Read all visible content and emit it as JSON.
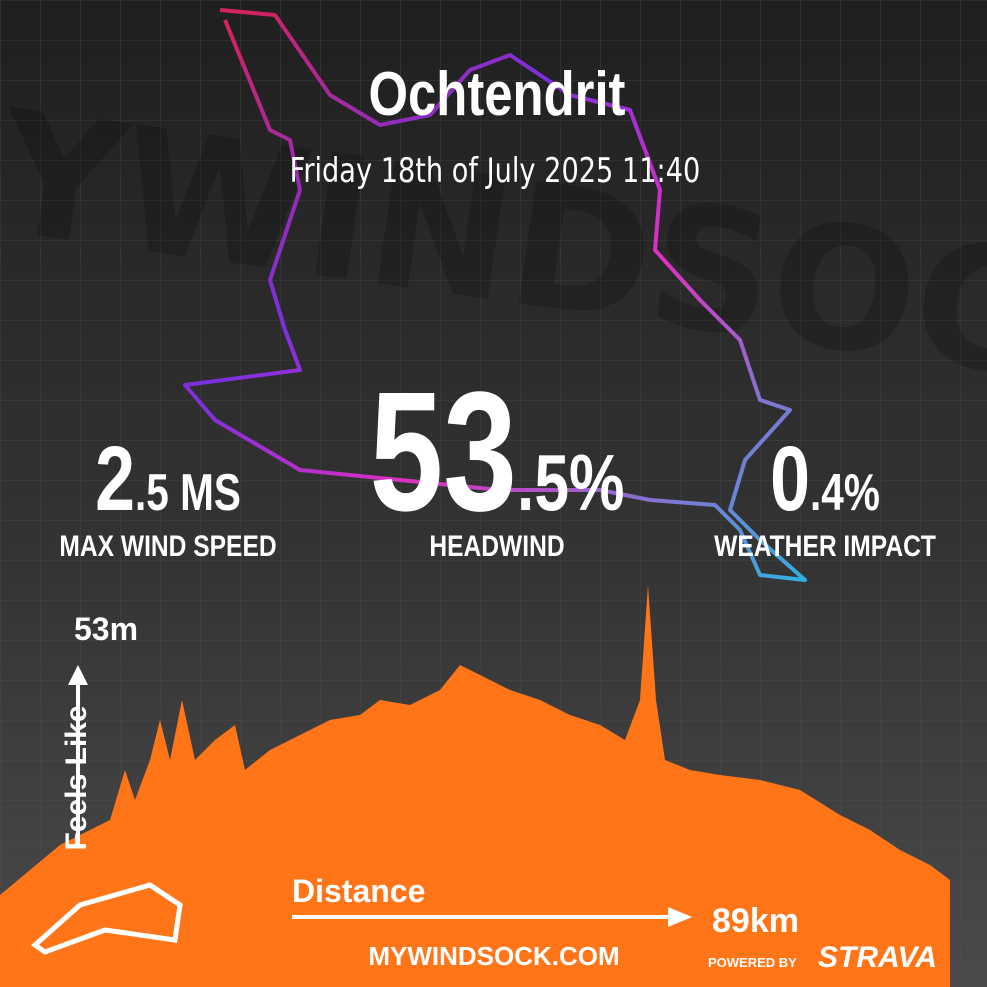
{
  "header": {
    "title": "Ochtendrit",
    "date": "Friday 18th of July 2025 11:40"
  },
  "stats": [
    {
      "big": "2",
      "small": ".5 MS",
      "label": "MAX WIND SPEED"
    },
    {
      "big": "53",
      "small": ".5%",
      "label": "HEADWIND"
    },
    {
      "big": "0",
      "small": ".4%",
      "label": "WEATHER IMPACT"
    }
  ],
  "profile": {
    "y_label": "Feels Like",
    "y_value": "53m",
    "x_label": "Distance",
    "x_value": "89km"
  },
  "footer": {
    "site": "MYWINDSOCK.COM",
    "powered": "POWERED BY",
    "brand": "STRAVA"
  }
}
